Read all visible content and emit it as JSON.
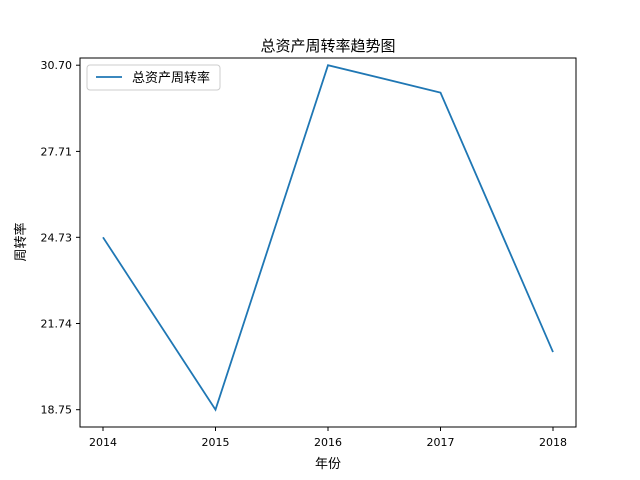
{
  "chart_data": {
    "type": "line",
    "title": "总资产周转率趋势图",
    "xlabel": "年份",
    "ylabel": "周转率",
    "categories": [
      "2014",
      "2015",
      "2016",
      "2017",
      "2018"
    ],
    "series": [
      {
        "name": "总资产周转率",
        "values": [
          24.73,
          18.75,
          30.7,
          29.75,
          20.75
        ],
        "color": "#1f77b4"
      }
    ],
    "yticks": [
      "18.75",
      "21.74",
      "24.73",
      "27.71",
      "30.70"
    ],
    "ylim": [
      18.15,
      30.95
    ],
    "grid": false,
    "legend": "top-left"
  }
}
